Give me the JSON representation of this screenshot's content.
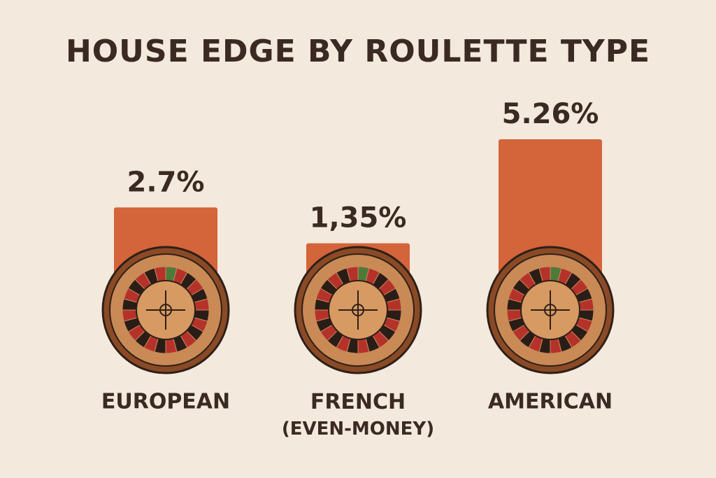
{
  "chart_data": {
    "type": "bar",
    "title": "HOUSE EDGE BY ROULETTE TYPE",
    "categories": [
      "EUROPEAN",
      "FRENCH (EVEN-MONEY)",
      "AMERICAN"
    ],
    "values": [
      2.7,
      1.35,
      5.26
    ],
    "value_labels": [
      "2.7%",
      "1,35%",
      "5.26%"
    ],
    "color": "#d4643a"
  }
}
